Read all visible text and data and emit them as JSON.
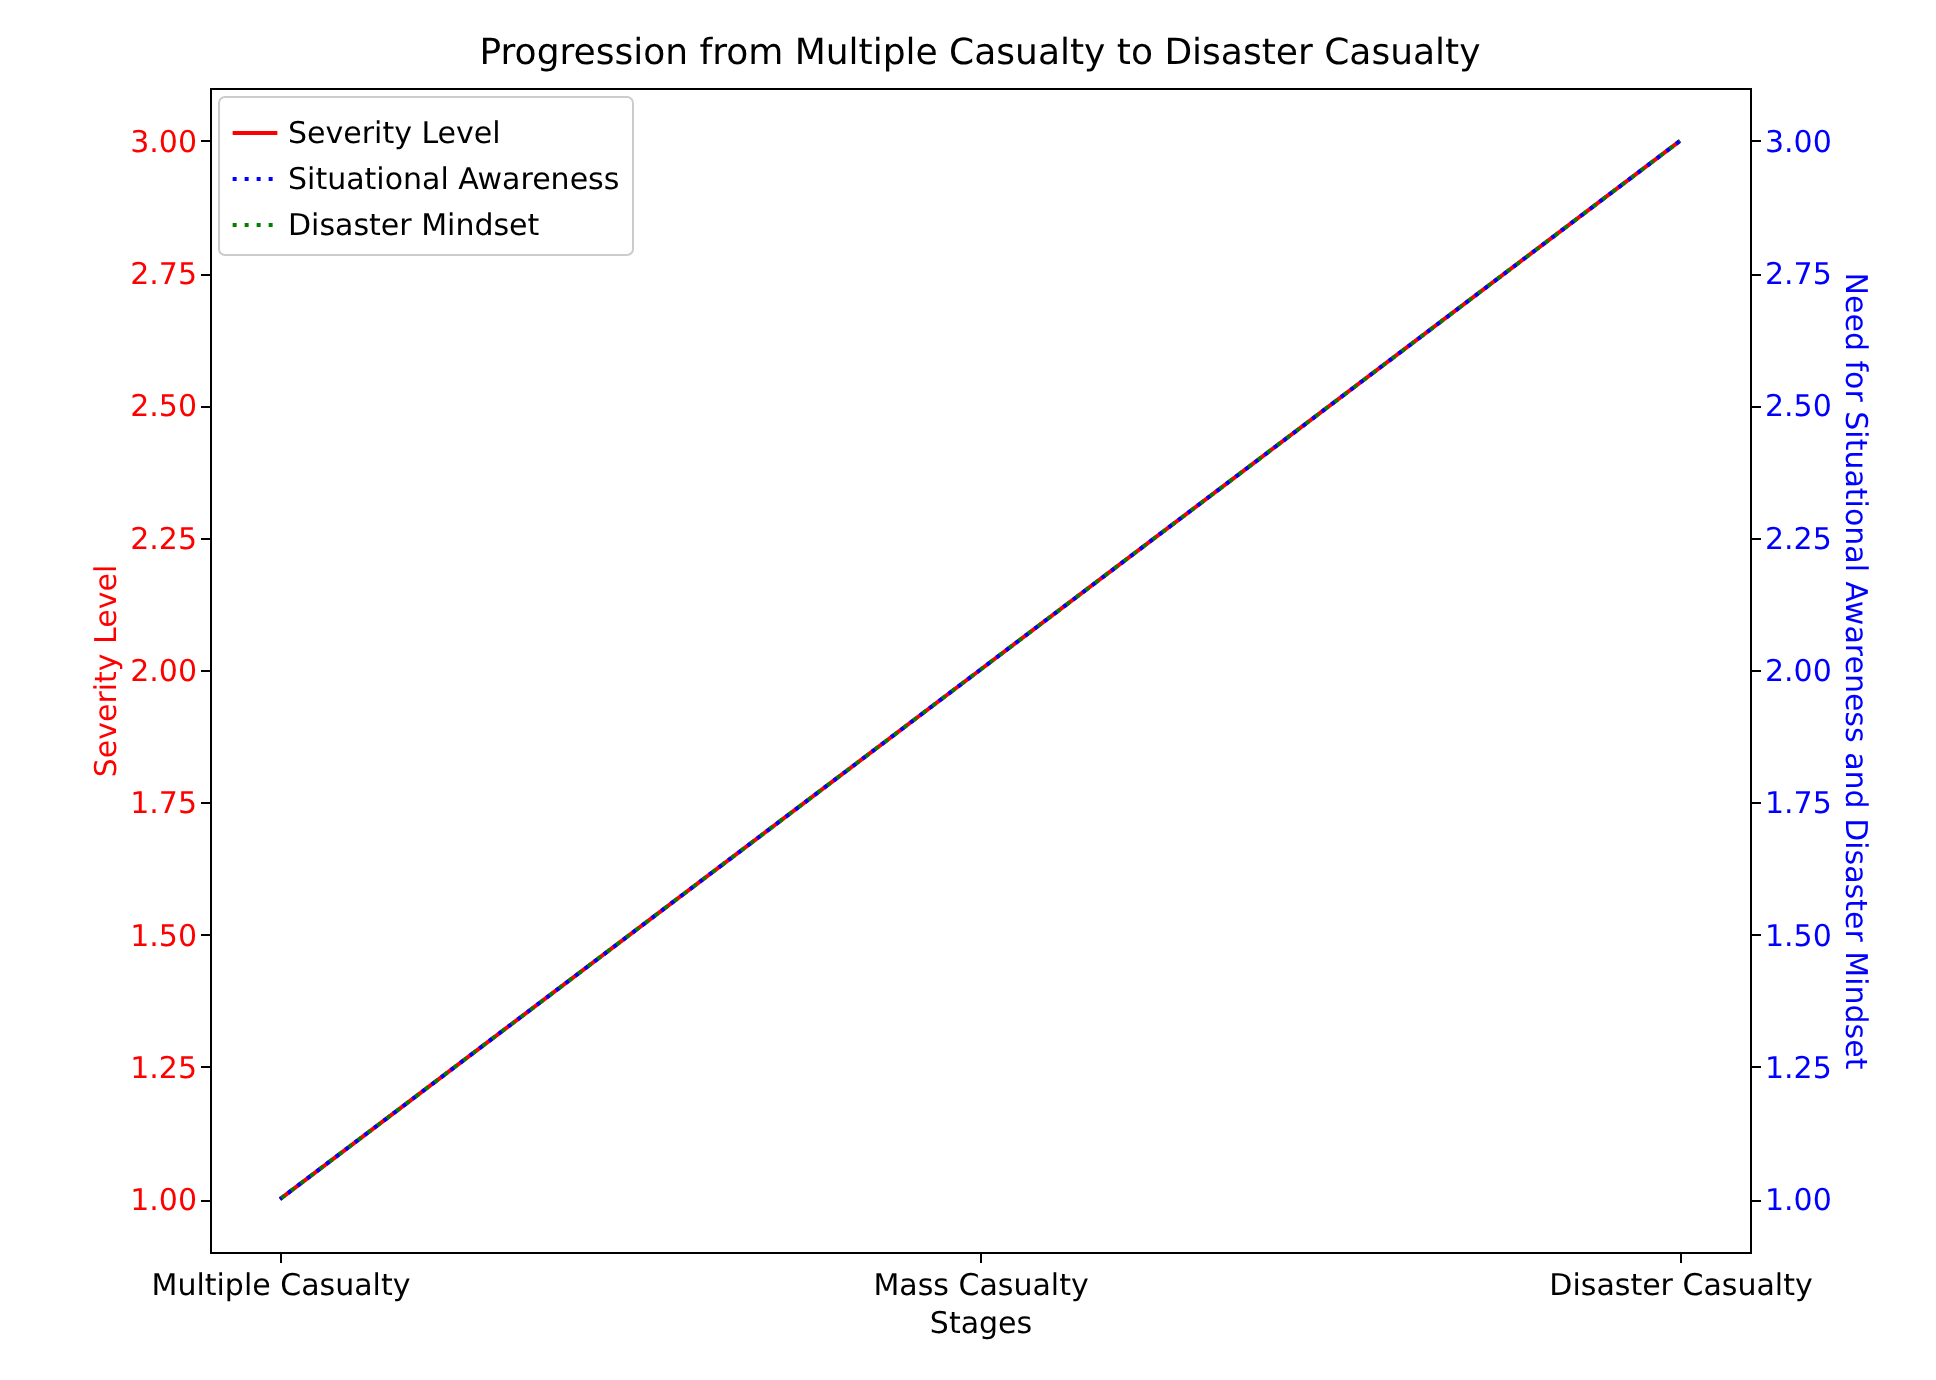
{
  "chart_data": {
    "type": "line",
    "title": "Progression from Multiple Casualty to Disaster Casualty",
    "xlabel": "Stages",
    "ylabel": "Severity Level",
    "y2label": "Need for Situational Awareness and Disaster Mindset",
    "categories": [
      "Multiple Casualty",
      "Mass Casualty",
      "Disaster Casualty"
    ],
    "series": [
      {
        "name": "Severity Level",
        "color": "#ff0000",
        "values": [
          1,
          2,
          3
        ],
        "line_style": "solid"
      },
      {
        "name": "Situational Awareness",
        "color": "#0000ff",
        "values": [
          1,
          2,
          3
        ],
        "axis": "y2",
        "line_style": "dashed"
      },
      {
        "name": "Disaster Mindset",
        "color": "#008000",
        "values": [
          1,
          2,
          3
        ],
        "axis": "y2",
        "line_style": "dashed"
      }
    ],
    "ylim": [
      0.9,
      3.1
    ],
    "yticks": [
      {
        "value": 1,
        "label": "1.00"
      },
      {
        "value": 1.25,
        "label": "1.25"
      },
      {
        "value": 1.5,
        "label": "1.50"
      },
      {
        "value": 1.75,
        "label": "1.75"
      },
      {
        "value": 2,
        "label": "2.00"
      },
      {
        "value": 2.25,
        "label": "2.25"
      },
      {
        "value": 2.5,
        "label": "2.50"
      },
      {
        "value": 2.75,
        "label": "2.75"
      },
      {
        "value": 3,
        "label": "3.00"
      }
    ],
    "y2lim": [
      0.9,
      3.1
    ],
    "y2ticks": [
      {
        "value": 1,
        "label": "1.00"
      },
      {
        "value": 1.25,
        "label": "1.25"
      },
      {
        "value": 1.5,
        "label": "1.50"
      },
      {
        "value": 1.75,
        "label": "1.75"
      },
      {
        "value": 2,
        "label": "2.00"
      },
      {
        "value": 2.25,
        "label": "2.25"
      },
      {
        "value": 2.5,
        "label": "2.50"
      },
      {
        "value": 2.75,
        "label": "2.75"
      },
      {
        "value": 3,
        "label": "3.00"
      }
    ],
    "grid": false,
    "legend": "top left"
  }
}
